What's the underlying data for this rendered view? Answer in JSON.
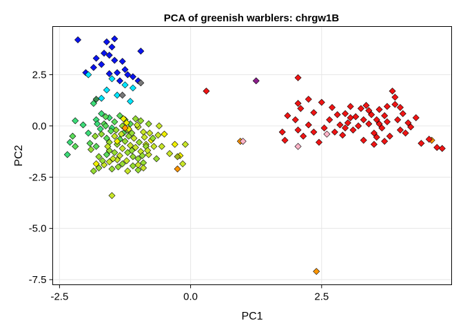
{
  "chart_data": {
    "type": "scatter",
    "title": "PCA of greenish warblers: chrgw1B",
    "xlabel": "PC1",
    "ylabel": "PC2",
    "xlim": [
      -2.63,
      4.98
    ],
    "ylim": [
      -7.75,
      4.85
    ],
    "xticks": [
      -2.5,
      0.0,
      2.5
    ],
    "xtick_labels": [
      "-2.5",
      "0.0",
      "2.5"
    ],
    "yticks": [
      2.5,
      0.0,
      -2.5,
      -5.0,
      -7.5
    ],
    "ytick_labels": [
      "2.5",
      "0.0",
      "-2.5",
      "-5.0",
      "-7.5"
    ],
    "grid": true,
    "marker": "diamond",
    "colors": {
      "blue": "#0a14f0",
      "cyan": "#00e6ff",
      "teal": "#3cdc78",
      "green": "#5adc5a",
      "lime": "#96dc32",
      "yellowgreen": "#c8e628",
      "yellow": "#f0f000",
      "orange": "#ff9600",
      "red": "#f01414",
      "pink": "#ffb4c8",
      "purple": "#8c1e8c",
      "darkgreen": "#3c8c50",
      "gray": "#787878",
      "olive": "#a0b41e"
    },
    "points": [
      [
        -2.15,
        4.2,
        "blue"
      ],
      [
        -1.45,
        4.25,
        "blue"
      ],
      [
        -1.6,
        4.1,
        "blue"
      ],
      [
        -1.5,
        3.85,
        "blue"
      ],
      [
        -1.65,
        3.55,
        "blue"
      ],
      [
        -1.55,
        3.45,
        "blue"
      ],
      [
        -0.95,
        3.65,
        "blue"
      ],
      [
        -1.8,
        3.3,
        "blue"
      ],
      [
        -1.45,
        3.2,
        "blue"
      ],
      [
        -1.3,
        3.15,
        "blue"
      ],
      [
        -1.7,
        3.0,
        "blue"
      ],
      [
        -1.25,
        2.75,
        "blue"
      ],
      [
        -1.85,
        2.85,
        "blue"
      ],
      [
        -2.0,
        2.6,
        "blue"
      ],
      [
        -1.55,
        2.55,
        "blue"
      ],
      [
        -1.4,
        2.6,
        "blue"
      ],
      [
        -1.1,
        2.4,
        "blue"
      ],
      [
        -1.0,
        2.2,
        "blue"
      ],
      [
        -1.2,
        2.5,
        "blue"
      ],
      [
        -1.35,
        2.2,
        "blue"
      ],
      [
        -1.25,
        2.0,
        "cyan"
      ],
      [
        -1.5,
        2.3,
        "cyan"
      ],
      [
        -1.95,
        2.5,
        "cyan"
      ],
      [
        -1.6,
        1.75,
        "cyan"
      ],
      [
        -1.4,
        1.5,
        "cyan"
      ],
      [
        -1.7,
        1.35,
        "cyan"
      ],
      [
        -1.1,
        1.85,
        "cyan"
      ],
      [
        -1.15,
        1.2,
        "cyan"
      ],
      [
        -1.8,
        1.3,
        "darkgreen"
      ],
      [
        -1.3,
        1.5,
        "gray"
      ],
      [
        -0.95,
        2.1,
        "gray"
      ],
      [
        -1.85,
        1.1,
        "teal"
      ],
      [
        -2.2,
        0.25,
        "teal"
      ],
      [
        -2.05,
        0.05,
        "teal"
      ],
      [
        -1.95,
        -0.35,
        "teal"
      ],
      [
        -2.25,
        -0.5,
        "green"
      ],
      [
        -2.3,
        -0.8,
        "teal"
      ],
      [
        -2.2,
        -1.0,
        "green"
      ],
      [
        -2.35,
        -1.4,
        "teal"
      ],
      [
        -1.9,
        -1.15,
        "lime"
      ],
      [
        -1.8,
        0.3,
        "teal"
      ],
      [
        -1.7,
        0.6,
        "teal"
      ],
      [
        -1.65,
        0.1,
        "green"
      ],
      [
        -1.55,
        0.4,
        "teal"
      ],
      [
        -1.5,
        -0.1,
        "teal"
      ],
      [
        -1.45,
        0.2,
        "green"
      ],
      [
        -1.35,
        0.5,
        "green"
      ],
      [
        -1.3,
        0.0,
        "lime"
      ],
      [
        -1.25,
        0.3,
        "green"
      ],
      [
        -1.2,
        -0.2,
        "lime"
      ],
      [
        -1.15,
        0.1,
        "green"
      ],
      [
        -1.05,
        0.35,
        "lime"
      ],
      [
        -1.0,
        -0.05,
        "yellowgreen"
      ],
      [
        -0.95,
        0.25,
        "lime"
      ],
      [
        -0.9,
        -0.3,
        "yellowgreen"
      ],
      [
        -0.8,
        0.1,
        "lime"
      ],
      [
        -1.7,
        -0.4,
        "lime"
      ],
      [
        -1.6,
        -0.6,
        "green"
      ],
      [
        -1.55,
        -0.8,
        "lime"
      ],
      [
        -1.45,
        -0.5,
        "yellowgreen"
      ],
      [
        -1.4,
        -0.9,
        "lime"
      ],
      [
        -1.35,
        -0.65,
        "green"
      ],
      [
        -1.3,
        -1.1,
        "yellowgreen"
      ],
      [
        -1.25,
        -0.75,
        "lime"
      ],
      [
        -1.2,
        -1.3,
        "lime"
      ],
      [
        -1.15,
        -0.95,
        "yellowgreen"
      ],
      [
        -1.1,
        -1.5,
        "lime"
      ],
      [
        -1.05,
        -1.05,
        "yellowgreen"
      ],
      [
        -1.0,
        -1.6,
        "lime"
      ],
      [
        -0.95,
        -1.25,
        "yellowgreen"
      ],
      [
        -0.9,
        -1.8,
        "lime"
      ],
      [
        -0.85,
        -0.9,
        "yellowgreen"
      ],
      [
        -0.8,
        -1.4,
        "yellowgreen"
      ],
      [
        -0.75,
        -0.7,
        "yellow"
      ],
      [
        -0.7,
        -1.0,
        "yellowgreen"
      ],
      [
        -0.65,
        -1.6,
        "lime"
      ],
      [
        -1.8,
        -1.0,
        "green"
      ],
      [
        -1.75,
        -1.5,
        "lime"
      ],
      [
        -1.65,
        -1.9,
        "yellowgreen"
      ],
      [
        -1.55,
        -1.2,
        "lime"
      ],
      [
        -1.5,
        -2.1,
        "lime"
      ],
      [
        -1.4,
        -1.65,
        "yellowgreen"
      ],
      [
        -1.3,
        -1.85,
        "lime"
      ],
      [
        -1.2,
        -2.2,
        "yellowgreen"
      ],
      [
        -1.1,
        -1.95,
        "lime"
      ],
      [
        -1.0,
        -2.15,
        "lime"
      ],
      [
        -0.9,
        -2.05,
        "yellowgreen"
      ],
      [
        -0.85,
        -1.0,
        "lime"
      ],
      [
        -1.75,
        -2.05,
        "lime"
      ],
      [
        -1.85,
        -2.2,
        "lime"
      ],
      [
        -1.6,
        -1.4,
        "green"
      ],
      [
        -1.45,
        -1.3,
        "lime"
      ],
      [
        -1.35,
        -1.45,
        "yellowgreen"
      ],
      [
        -1.28,
        -0.35,
        "green"
      ],
      [
        -1.18,
        -0.5,
        "lime"
      ],
      [
        -1.08,
        -0.6,
        "yellowgreen"
      ],
      [
        -0.98,
        -0.8,
        "lime"
      ],
      [
        -0.88,
        -0.55,
        "yellowgreen"
      ],
      [
        -0.78,
        -0.35,
        "yellowgreen"
      ],
      [
        -1.62,
        0.45,
        "green"
      ],
      [
        -1.72,
        -0.15,
        "teal"
      ],
      [
        -1.82,
        -0.5,
        "lime"
      ],
      [
        -1.92,
        -0.85,
        "green"
      ],
      [
        -1.68,
        -1.7,
        "lime"
      ],
      [
        -1.58,
        -1.0,
        "yellowgreen"
      ],
      [
        -1.38,
        -2.0,
        "lime"
      ],
      [
        -1.22,
        -1.7,
        "yellowgreen"
      ],
      [
        -0.92,
        -1.45,
        "lime"
      ],
      [
        -0.82,
        -1.2,
        "yellowgreen"
      ],
      [
        -0.72,
        -0.6,
        "lime"
      ],
      [
        -1.02,
        0.05,
        "yellowgreen"
      ],
      [
        -0.62,
        -0.45,
        "yellowgreen"
      ],
      [
        -1.52,
        -0.25,
        "green"
      ],
      [
        -1.42,
        -0.2,
        "lime"
      ],
      [
        -1.32,
        -0.4,
        "yellowgreen"
      ],
      [
        -1.12,
        -0.35,
        "lime"
      ],
      [
        -1.12,
        -1.2,
        "lime"
      ],
      [
        -1.48,
        -1.6,
        "yellowgreen"
      ],
      [
        -1.62,
        0.0,
        "green"
      ],
      [
        -1.78,
        0.1,
        "teal"
      ],
      [
        -1.22,
        0.15,
        "yellow"
      ],
      [
        -1.28,
        0.35,
        "yellow"
      ],
      [
        -1.18,
        -0.15,
        "yellow"
      ],
      [
        -1.4,
        -0.75,
        "yellow"
      ],
      [
        -0.5,
        -0.4,
        "yellow"
      ],
      [
        -0.3,
        -0.9,
        "yellow"
      ],
      [
        -0.2,
        -1.45,
        "yellow"
      ],
      [
        -0.55,
        -1.0,
        "yellowgreen"
      ],
      [
        -0.6,
        0.0,
        "yellowgreen"
      ],
      [
        -0.4,
        -1.35,
        "yellowgreen"
      ],
      [
        -0.25,
        -1.5,
        "olive"
      ],
      [
        -0.1,
        -0.9,
        "yellowgreen"
      ],
      [
        -1.8,
        -1.85,
        "yellow"
      ],
      [
        -1.55,
        -1.75,
        "yellowgreen"
      ],
      [
        -1.0,
        -1.9,
        "yellowgreen"
      ],
      [
        -1.5,
        -3.4,
        "yellowgreen"
      ],
      [
        -0.25,
        -2.1,
        "orange"
      ],
      [
        -1.25,
        -0.1,
        "orange"
      ],
      [
        -0.15,
        -1.85,
        "yellowgreen"
      ],
      [
        0.3,
        1.7,
        "red"
      ],
      [
        1.25,
        2.2,
        "purple"
      ],
      [
        0.95,
        -0.75,
        "orange"
      ],
      [
        1.0,
        -0.75,
        "pink"
      ],
      [
        2.05,
        -1.0,
        "pink"
      ],
      [
        2.6,
        -0.4,
        "pink"
      ],
      [
        2.4,
        -7.1,
        "orange"
      ],
      [
        4.6,
        -0.7,
        "orange"
      ],
      [
        2.05,
        2.35,
        "red"
      ],
      [
        2.05,
        1.1,
        "red"
      ],
      [
        2.1,
        0.85,
        "red"
      ],
      [
        2.25,
        1.3,
        "red"
      ],
      [
        2.35,
        0.65,
        "red"
      ],
      [
        2.5,
        1.15,
        "red"
      ],
      [
        2.0,
        0.3,
        "red"
      ],
      [
        1.85,
        0.5,
        "red"
      ],
      [
        1.75,
        -0.3,
        "red"
      ],
      [
        1.8,
        -0.7,
        "red"
      ],
      [
        2.05,
        -0.2,
        "red"
      ],
      [
        2.15,
        -0.5,
        "red"
      ],
      [
        2.25,
        0.05,
        "red"
      ],
      [
        2.35,
        -0.3,
        "red"
      ],
      [
        2.45,
        -0.8,
        "red"
      ],
      [
        2.55,
        -0.1,
        "red"
      ],
      [
        2.65,
        0.3,
        "red"
      ],
      [
        2.75,
        -0.3,
        "red"
      ],
      [
        2.8,
        0.55,
        "red"
      ],
      [
        2.85,
        0.05,
        "red"
      ],
      [
        2.9,
        -0.45,
        "red"
      ],
      [
        2.95,
        0.6,
        "red"
      ],
      [
        3.0,
        0.15,
        "red"
      ],
      [
        3.05,
        0.95,
        "red"
      ],
      [
        3.1,
        -0.2,
        "red"
      ],
      [
        3.15,
        0.45,
        "red"
      ],
      [
        3.2,
        0.0,
        "red"
      ],
      [
        3.25,
        0.85,
        "red"
      ],
      [
        3.3,
        0.3,
        "red"
      ],
      [
        3.35,
        1.0,
        "red"
      ],
      [
        3.4,
        0.1,
        "red"
      ],
      [
        3.45,
        0.55,
        "red"
      ],
      [
        3.5,
        -0.35,
        "red"
      ],
      [
        3.55,
        0.3,
        "red"
      ],
      [
        3.6,
        0.8,
        "red"
      ],
      [
        3.65,
        -0.1,
        "red"
      ],
      [
        3.7,
        0.5,
        "red"
      ],
      [
        3.75,
        0.95,
        "red"
      ],
      [
        3.8,
        -0.5,
        "red"
      ],
      [
        3.85,
        1.7,
        "red"
      ],
      [
        3.9,
        1.4,
        "red"
      ],
      [
        3.95,
        0.3,
        "red"
      ],
      [
        4.0,
        -0.2,
        "red"
      ],
      [
        4.05,
        0.6,
        "red"
      ],
      [
        4.1,
        -0.35,
        "red"
      ],
      [
        4.15,
        0.15,
        "red"
      ],
      [
        4.2,
        -0.05,
        "red"
      ],
      [
        4.3,
        0.4,
        "red"
      ],
      [
        4.4,
        -0.85,
        "red"
      ],
      [
        4.55,
        -0.65,
        "red"
      ],
      [
        4.7,
        -1.05,
        "red"
      ],
      [
        4.8,
        -1.1,
        "red"
      ],
      [
        3.3,
        -0.7,
        "red"
      ],
      [
        3.5,
        -0.9,
        "red"
      ],
      [
        3.55,
        -0.55,
        "red"
      ],
      [
        3.7,
        -0.75,
        "red"
      ],
      [
        3.9,
        1.05,
        "red"
      ],
      [
        3.05,
        0.4,
        "red"
      ],
      [
        2.95,
        -0.1,
        "red"
      ],
      [
        2.7,
        0.9,
        "red"
      ],
      [
        3.4,
        0.75,
        "red"
      ],
      [
        3.6,
        0.1,
        "red"
      ],
      [
        3.75,
        0.2,
        "red"
      ],
      [
        4.0,
        0.9,
        "red"
      ]
    ]
  }
}
